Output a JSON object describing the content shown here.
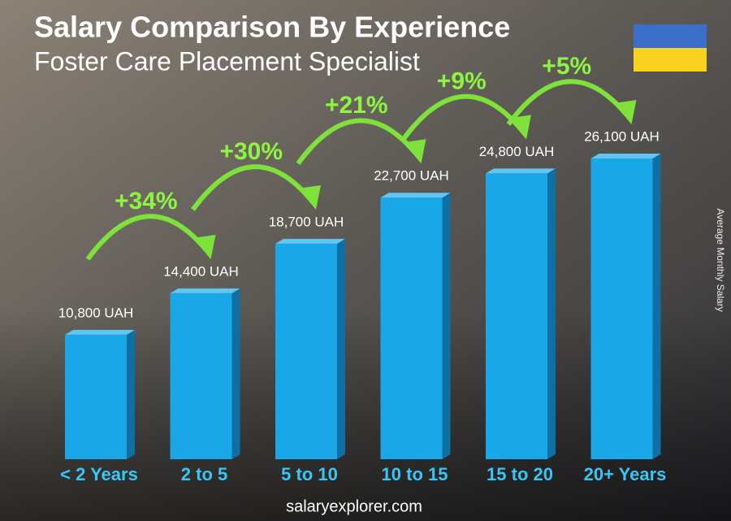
{
  "chart_data": {
    "type": "bar",
    "title": "Salary Comparison By Experience",
    "subtitle": "Foster Care Placement Specialist",
    "y_axis_label": "Average Monthly Salary",
    "categories": [
      "< 2 Years",
      "2 to 5",
      "5 to 10",
      "10 to 15",
      "15 to 20",
      "20+ Years"
    ],
    "values": [
      10800,
      14400,
      18700,
      22700,
      24800,
      26100
    ],
    "value_labels": [
      "10,800 UAH",
      "14,400 UAH",
      "18,700 UAH",
      "22,700 UAH",
      "24,800 UAH",
      "26,100 UAH"
    ],
    "annotations": [
      "+34%",
      "+30%",
      "+21%",
      "+9%",
      "+5%"
    ],
    "color": "#1aa7e8",
    "footer": "salaryexplorer.com"
  }
}
